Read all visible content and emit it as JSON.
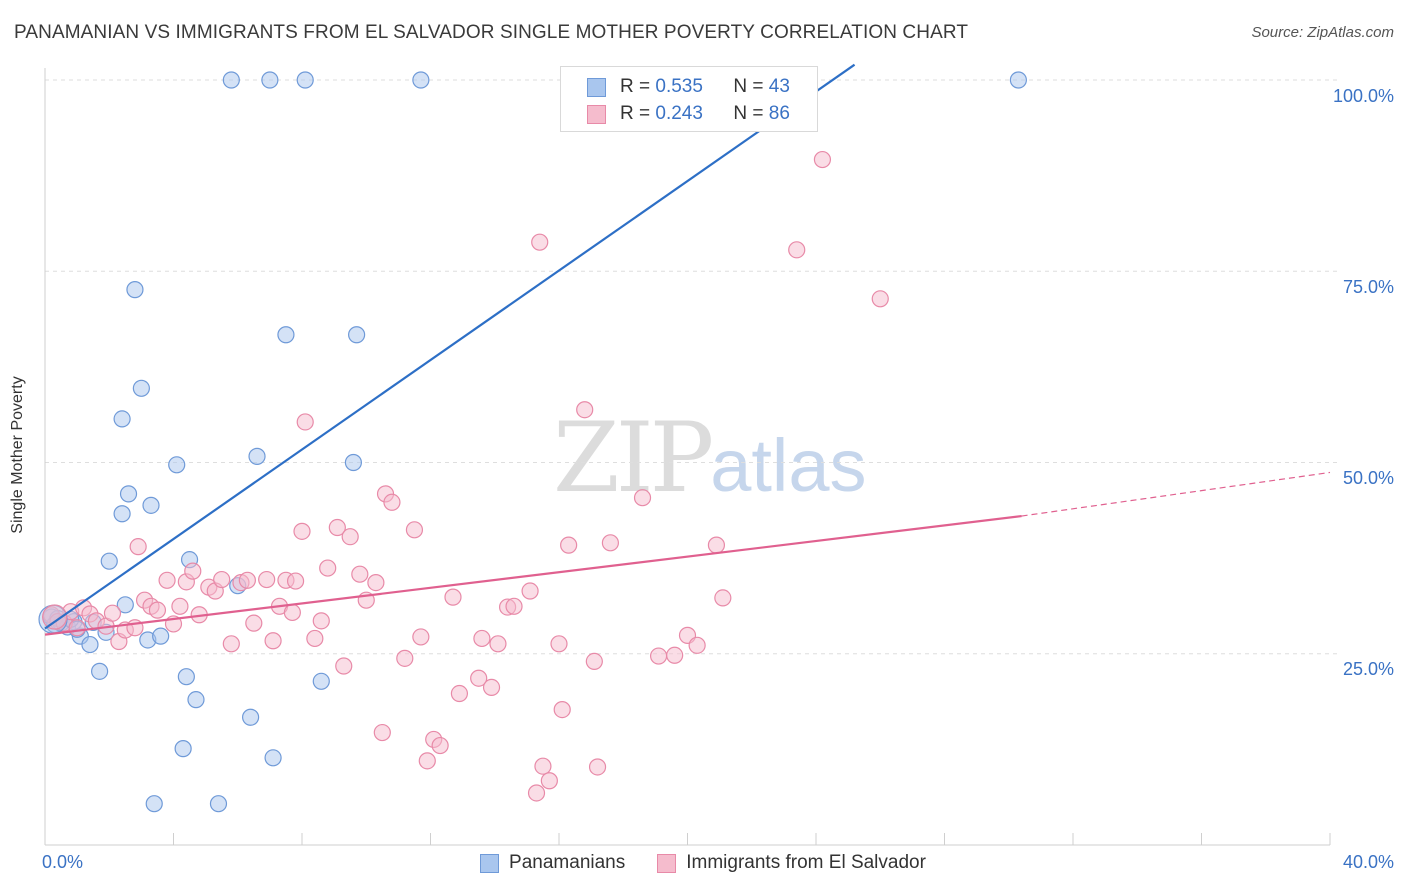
{
  "header": {
    "title": "PANAMANIAN VS IMMIGRANTS FROM EL SALVADOR SINGLE MOTHER POVERTY CORRELATION CHART",
    "source": "Source: ZipAtlas.com"
  },
  "watermark": {
    "zip": "ZIP",
    "atlas": "atlas"
  },
  "legend": {
    "rows": [
      {
        "r_label": "R = ",
        "r_value": "0.535",
        "n_label": "N = ",
        "n_value": "43"
      },
      {
        "r_label": "R = ",
        "r_value": "0.243",
        "n_label": "N = ",
        "n_value": "86"
      }
    ]
  },
  "bottom_legend": {
    "series1": "Panamanians",
    "series2": "Immigrants from El Salvador"
  },
  "colors": {
    "blue_fill": "#a9c6ee",
    "blue_stroke": "#6f9ad8",
    "blue_line": "#2d6fc6",
    "pink_fill": "#f5bccd",
    "pink_stroke": "#e88aa8",
    "pink_line": "#e0608f",
    "axis_text": "#3a72c4",
    "grid": "#dedede"
  },
  "chart_data": {
    "type": "scatter",
    "title": "PANAMANIAN VS IMMIGRANTS FROM EL SALVADOR SINGLE MOTHER POVERTY CORRELATION CHART",
    "xlabel": "",
    "ylabel": "Single Mother Poverty",
    "xlim": [
      0,
      40
    ],
    "ylim": [
      0,
      100
    ],
    "x_tick_labels": [
      "0.0%",
      "40.0%"
    ],
    "y_tick_labels": [
      "25.0%",
      "50.0%",
      "75.0%",
      "100.0%"
    ],
    "y_ticks": [
      25,
      50,
      75,
      100
    ],
    "grid": true,
    "legend_placement": "top-center",
    "series": [
      {
        "name": "Panamanians",
        "color": "#6f9ad8",
        "trend": {
          "x": [
            0,
            25.2
          ],
          "y": [
            28.3,
            102
          ]
        },
        "points": [
          [
            0.2,
            29.8
          ],
          [
            0.3,
            28.8
          ],
          [
            0.5,
            29.0
          ],
          [
            0.7,
            28.5
          ],
          [
            0.9,
            29.2
          ],
          [
            1.1,
            27.3
          ],
          [
            1.5,
            29.1
          ],
          [
            1.7,
            22.7
          ],
          [
            1.9,
            27.8
          ],
          [
            2.0,
            37.1
          ],
          [
            2.4,
            55.7
          ],
          [
            2.4,
            43.3
          ],
          [
            2.5,
            31.4
          ],
          [
            2.6,
            45.9
          ],
          [
            2.8,
            72.6
          ],
          [
            3.0,
            59.7
          ],
          [
            3.2,
            26.8
          ],
          [
            3.3,
            44.4
          ],
          [
            3.4,
            5.4
          ],
          [
            3.6,
            27.3
          ],
          [
            4.1,
            49.7
          ],
          [
            4.3,
            12.6
          ],
          [
            4.4,
            22.0
          ],
          [
            4.5,
            37.3
          ],
          [
            4.7,
            19.0
          ],
          [
            5.4,
            5.4
          ],
          [
            5.8,
            100.0
          ],
          [
            6.0,
            33.9
          ],
          [
            6.4,
            16.7
          ],
          [
            6.6,
            50.8
          ],
          [
            7.0,
            100.0
          ],
          [
            7.1,
            11.4
          ],
          [
            7.5,
            66.7
          ],
          [
            8.1,
            100.0
          ],
          [
            8.6,
            21.4
          ],
          [
            9.6,
            50.0
          ],
          [
            9.7,
            66.7
          ],
          [
            11.7,
            100.0
          ],
          [
            30.3,
            100.0
          ],
          [
            1.4,
            26.2
          ],
          [
            0.8,
            29.5
          ],
          [
            1.0,
            28.2
          ],
          [
            0.4,
            29.6
          ]
        ]
      },
      {
        "name": "Immigrants from El Salvador",
        "color": "#e88aa8",
        "trend": {
          "x": [
            0,
            30.4
          ],
          "y": [
            27.5,
            43.0
          ]
        },
        "trend_dashed": {
          "x": [
            30.4,
            40
          ],
          "y": [
            43.0,
            48.7
          ]
        },
        "points": [
          [
            0.2,
            30.1
          ],
          [
            0.4,
            29.2
          ],
          [
            0.6,
            29.0
          ],
          [
            0.8,
            30.5
          ],
          [
            1.0,
            28.4
          ],
          [
            1.2,
            31.0
          ],
          [
            1.4,
            30.2
          ],
          [
            1.6,
            29.3
          ],
          [
            1.9,
            28.6
          ],
          [
            2.1,
            30.3
          ],
          [
            2.3,
            26.6
          ],
          [
            2.5,
            28.1
          ],
          [
            2.8,
            28.4
          ],
          [
            2.9,
            39.0
          ],
          [
            3.1,
            32.0
          ],
          [
            3.3,
            31.2
          ],
          [
            3.5,
            30.7
          ],
          [
            3.8,
            34.6
          ],
          [
            4.0,
            28.9
          ],
          [
            4.2,
            31.2
          ],
          [
            4.4,
            34.4
          ],
          [
            4.6,
            35.8
          ],
          [
            4.8,
            30.1
          ],
          [
            5.1,
            33.7
          ],
          [
            5.3,
            33.2
          ],
          [
            5.5,
            34.7
          ],
          [
            5.8,
            26.3
          ],
          [
            6.1,
            34.3
          ],
          [
            6.3,
            34.6
          ],
          [
            6.5,
            29.0
          ],
          [
            6.9,
            34.7
          ],
          [
            7.1,
            26.7
          ],
          [
            7.3,
            31.2
          ],
          [
            7.5,
            34.6
          ],
          [
            7.7,
            30.4
          ],
          [
            7.8,
            34.5
          ],
          [
            8.0,
            41.0
          ],
          [
            8.1,
            55.3
          ],
          [
            8.4,
            27.0
          ],
          [
            8.6,
            29.3
          ],
          [
            8.8,
            36.2
          ],
          [
            9.1,
            41.5
          ],
          [
            9.3,
            23.4
          ],
          [
            9.5,
            40.3
          ],
          [
            9.8,
            35.4
          ],
          [
            10.0,
            32.0
          ],
          [
            10.3,
            34.3
          ],
          [
            10.5,
            14.7
          ],
          [
            10.6,
            45.9
          ],
          [
            10.8,
            44.8
          ],
          [
            11.2,
            24.4
          ],
          [
            11.5,
            41.2
          ],
          [
            11.7,
            27.2
          ],
          [
            11.9,
            11.0
          ],
          [
            12.1,
            13.8
          ],
          [
            12.3,
            13.0
          ],
          [
            12.7,
            32.4
          ],
          [
            12.9,
            19.8
          ],
          [
            13.5,
            21.8
          ],
          [
            13.6,
            27.0
          ],
          [
            13.9,
            20.6
          ],
          [
            14.1,
            26.3
          ],
          [
            14.4,
            31.1
          ],
          [
            14.6,
            31.2
          ],
          [
            15.1,
            33.2
          ],
          [
            15.3,
            6.8
          ],
          [
            15.5,
            10.3
          ],
          [
            15.7,
            8.4
          ],
          [
            15.4,
            78.8
          ],
          [
            16.0,
            26.3
          ],
          [
            16.1,
            17.7
          ],
          [
            16.3,
            39.2
          ],
          [
            16.8,
            56.9
          ],
          [
            17.1,
            24.0
          ],
          [
            17.2,
            10.2
          ],
          [
            17.6,
            39.5
          ],
          [
            18.6,
            45.4
          ],
          [
            19.1,
            24.7
          ],
          [
            19.6,
            24.8
          ],
          [
            20.0,
            27.4
          ],
          [
            20.3,
            26.1
          ],
          [
            20.9,
            39.2
          ],
          [
            21.1,
            32.3
          ],
          [
            23.4,
            77.8
          ],
          [
            24.2,
            89.6
          ],
          [
            26.0,
            71.4
          ]
        ]
      }
    ]
  }
}
